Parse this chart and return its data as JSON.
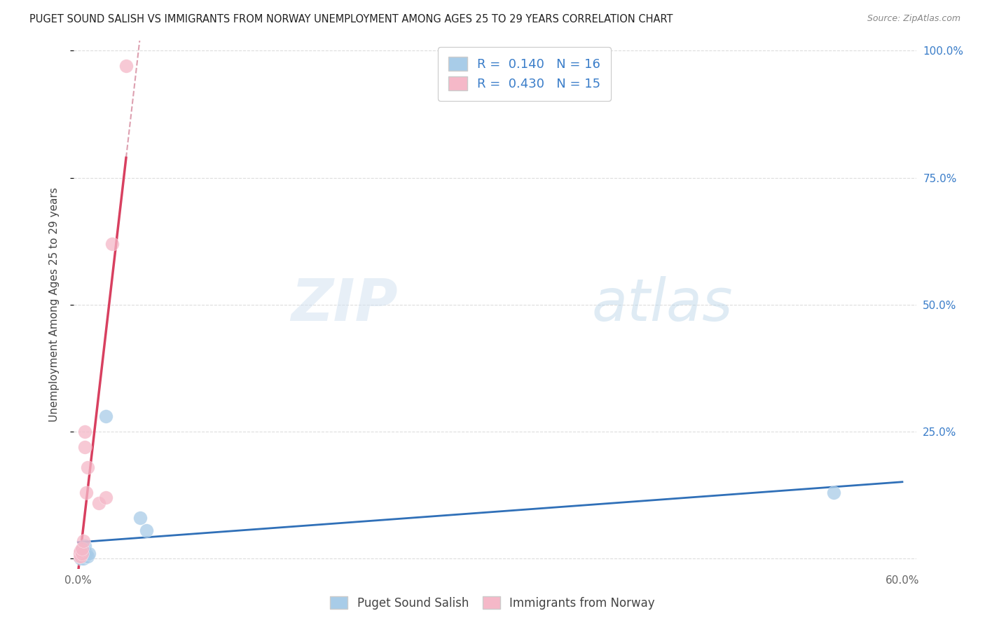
{
  "title": "PUGET SOUND SALISH VS IMMIGRANTS FROM NORWAY UNEMPLOYMENT AMONG AGES 25 TO 29 YEARS CORRELATION CHART",
  "source": "Source: ZipAtlas.com",
  "ylabel": "Unemployment Among Ages 25 to 29 years",
  "xlim": [
    -0.003,
    0.61
  ],
  "ylim": [
    -0.02,
    1.02
  ],
  "xticks": [
    0.0,
    0.1,
    0.2,
    0.3,
    0.4,
    0.5,
    0.6
  ],
  "xticklabels": [
    "0.0%",
    "",
    "",
    "",
    "",
    "",
    "60.0%"
  ],
  "yticks_right": [
    0.0,
    0.25,
    0.5,
    0.75,
    1.0
  ],
  "ytick_right_labels": [
    "",
    "25.0%",
    "50.0%",
    "75.0%",
    "100.0%"
  ],
  "blue_scatter_color": "#a8cce8",
  "pink_scatter_color": "#f5b8c8",
  "blue_line_color": "#3070b8",
  "pink_line_color": "#d84060",
  "pink_dashed_color": "#dda0b0",
  "right_axis_color": "#3a7dc9",
  "legend_text_color": "#3a7dc9",
  "series1_label": "Puget Sound Salish",
  "series2_label": "Immigrants from Norway",
  "series1_R": "0.140",
  "series1_N": "16",
  "series2_R": "0.430",
  "series2_N": "15",
  "series1_x": [
    0.001,
    0.002,
    0.002,
    0.003,
    0.003,
    0.004,
    0.004,
    0.005,
    0.005,
    0.006,
    0.007,
    0.008,
    0.02,
    0.045,
    0.05,
    0.55
  ],
  "series1_y": [
    0.005,
    0.0,
    0.01,
    0.005,
    0.015,
    0.0,
    0.02,
    0.005,
    0.025,
    0.01,
    0.005,
    0.01,
    0.28,
    0.08,
    0.055,
    0.13
  ],
  "series2_x": [
    0.001,
    0.001,
    0.002,
    0.002,
    0.003,
    0.003,
    0.004,
    0.005,
    0.005,
    0.006,
    0.007,
    0.015,
    0.02,
    0.025,
    0.035
  ],
  "series2_y": [
    0.005,
    0.01,
    0.005,
    0.015,
    0.01,
    0.02,
    0.035,
    0.22,
    0.25,
    0.13,
    0.18,
    0.11,
    0.12,
    0.62,
    0.97
  ],
  "watermark_zip": "ZIP",
  "watermark_atlas": "atlas",
  "background_color": "#ffffff",
  "grid_color": "#dddddd",
  "title_fontsize": 10.5,
  "source_fontsize": 9,
  "axis_label_fontsize": 11,
  "tick_fontsize": 11,
  "legend_fontsize": 13
}
